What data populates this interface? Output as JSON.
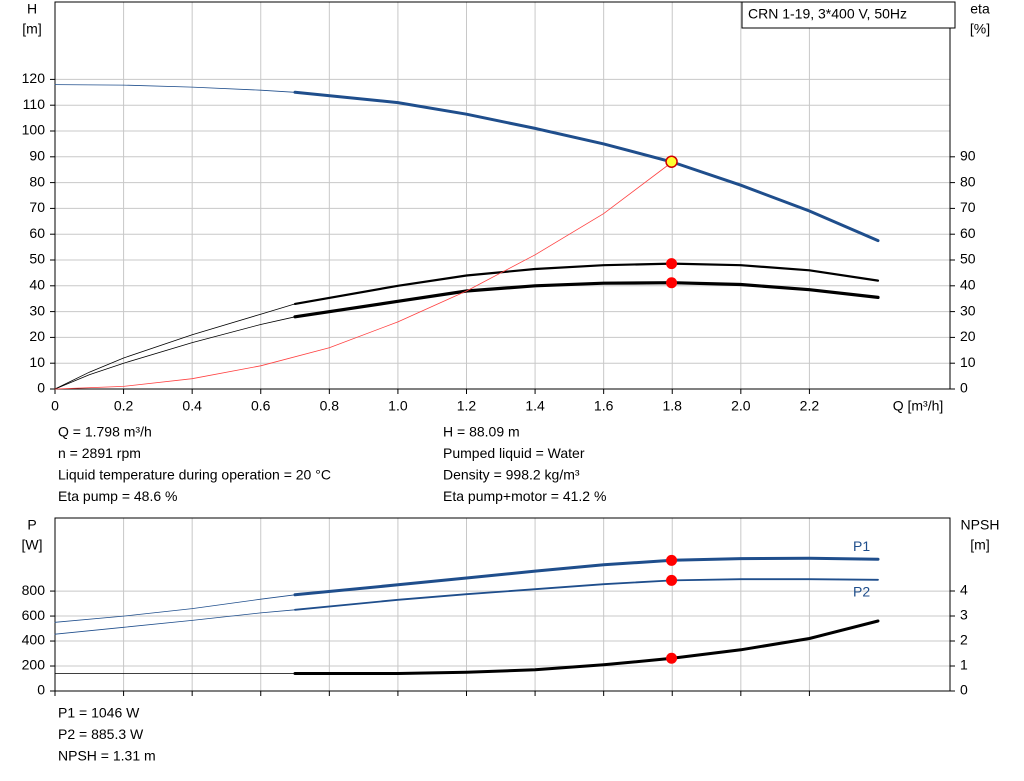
{
  "chart_data": [
    {
      "type": "line",
      "model": "CRN 1-19, 3*400 V, 50Hz",
      "y_label": [
        "H",
        "[m]"
      ],
      "y2_label": [
        "eta",
        "[%]"
      ],
      "x_label": "Q [m³/h]",
      "xlim": [
        0,
        2.61
      ],
      "xticks": [
        0,
        0.2,
        0.4,
        0.6,
        0.8,
        {
          "value": 1,
          "label": "1.0"
        },
        1.2,
        1.4,
        1.6,
        1.8,
        {
          "value": 2,
          "label": "2.0"
        },
        2.2
      ],
      "ylim": [
        0,
        150
      ],
      "yticks": [
        0,
        10,
        20,
        30,
        40,
        50,
        60,
        70,
        80,
        90,
        100,
        110,
        120
      ],
      "y2lim": [
        0,
        150
      ],
      "y2ticks": [
        0,
        10,
        20,
        30,
        40,
        50,
        60,
        70,
        80,
        90
      ],
      "grid": true,
      "lines": [
        {
          "color": "#1f4e8c",
          "width": 0.8,
          "axis": "y",
          "x": [
            0,
            0.2,
            0.4,
            0.6,
            0.7
          ],
          "values": [
            118,
            117.8,
            117,
            115.8,
            115
          ]
        },
        {
          "color": "#1f4e8c",
          "width": 3,
          "axis": "y",
          "x": [
            0.7,
            1.0,
            1.2,
            1.4,
            1.6,
            1.8,
            2.0,
            2.2,
            2.4
          ],
          "values": [
            115,
            111,
            106.5,
            101,
            95,
            88,
            79,
            69,
            57.5
          ]
        },
        {
          "color": "#000000",
          "width": 0.8,
          "axis": "y2",
          "x": [
            0,
            0.1,
            0.2,
            0.4,
            0.6,
            0.7
          ],
          "values": [
            0,
            6.5,
            12,
            21,
            29,
            33
          ]
        },
        {
          "color": "#000000",
          "width": 2.2,
          "axis": "y2",
          "x": [
            0.7,
            1.0,
            1.2,
            1.4,
            1.6,
            1.8,
            2.0,
            2.2,
            2.4
          ],
          "values": [
            33,
            40,
            44,
            46.5,
            48,
            48.6,
            48,
            46,
            42
          ]
        },
        {
          "color": "#000000",
          "width": 0.8,
          "axis": "y2",
          "x": [
            0,
            0.1,
            0.2,
            0.4,
            0.6,
            0.7
          ],
          "values": [
            0,
            5.5,
            10,
            18,
            25,
            28
          ]
        },
        {
          "color": "#000000",
          "width": 3.2,
          "axis": "y2",
          "x": [
            0.7,
            1.0,
            1.2,
            1.4,
            1.6,
            1.8,
            2.0,
            2.2,
            2.4
          ],
          "values": [
            28,
            34,
            38,
            40,
            41,
            41.2,
            40.5,
            38.5,
            35.5
          ]
        },
        {
          "color": "#ff4040",
          "width": 0.8,
          "axis": "y",
          "x": [
            0,
            0.2,
            0.4,
            0.6,
            0.8,
            1.0,
            1.2,
            1.4,
            1.6,
            1.8
          ],
          "values": [
            0,
            1,
            4,
            9,
            16,
            26,
            38,
            52,
            68,
            88
          ]
        }
      ],
      "points": [
        {
          "x": 1.798,
          "value": 88.09,
          "axis": "y",
          "color": "#ffff33"
        },
        {
          "x": 1.798,
          "value": 48.6,
          "axis": "y2",
          "color": "#ff0000"
        },
        {
          "x": 1.798,
          "value": 41.2,
          "axis": "y2",
          "color": "#ff0000"
        }
      ],
      "readout": [
        [
          "Q = 1.798 m³/h",
          "n = 2891 rpm",
          "Liquid temperature during operation = 20 °C",
          "Eta pump = 48.6 %"
        ],
        [
          "H = 88.09 m",
          "Pumped liquid = Water",
          "Density = 998.2 kg/m³",
          "Eta pump+motor = 41.2 %"
        ]
      ]
    },
    {
      "type": "line",
      "y_label": [
        "P",
        "[W]"
      ],
      "y2_label": [
        "NPSH",
        "[m]"
      ],
      "xlim": [
        0,
        2.61
      ],
      "xticks": [
        0,
        0.2,
        0.4,
        0.6,
        0.8,
        1,
        1.2,
        1.4,
        1.6,
        1.8,
        2,
        2.2
      ],
      "ylim": [
        0,
        1385
      ],
      "yticks": [
        0,
        200,
        400,
        600,
        800
      ],
      "y2lim": [
        0,
        6.92
      ],
      "y2ticks": [
        0,
        1,
        2,
        3,
        4
      ],
      "grid": true,
      "lines": [
        {
          "color": "#1f4e8c",
          "width": 0.8,
          "axis": "y",
          "x": [
            0,
            0.2,
            0.4,
            0.6,
            0.7
          ],
          "values": [
            550,
            600,
            660,
            735,
            770
          ]
        },
        {
          "color": "#1f4e8c",
          "width": 3,
          "axis": "y",
          "label": "P1",
          "x": [
            0.7,
            1.0,
            1.2,
            1.4,
            1.6,
            1.8,
            2.0,
            2.2,
            2.4
          ],
          "values": [
            770,
            850,
            905,
            960,
            1010,
            1046,
            1060,
            1062,
            1055
          ]
        },
        {
          "color": "#1f4e8c",
          "width": 0.8,
          "axis": "y",
          "x": [
            0,
            0.2,
            0.4,
            0.6,
            0.7
          ],
          "values": [
            455,
            510,
            565,
            625,
            650
          ]
        },
        {
          "color": "#1f4e8c",
          "width": 1.8,
          "axis": "y",
          "label": "P2",
          "x": [
            0.7,
            1.0,
            1.2,
            1.4,
            1.6,
            1.8,
            2.0,
            2.2,
            2.4
          ],
          "values": [
            650,
            730,
            775,
            815,
            855,
            885.3,
            895,
            895,
            890
          ]
        },
        {
          "color": "#000000",
          "width": 0.8,
          "axis": "y2",
          "x": [
            0,
            0.7
          ],
          "values": [
            0.7,
            0.7
          ]
        },
        {
          "color": "#000000",
          "width": 3,
          "axis": "y2",
          "x": [
            0.7,
            1.0,
            1.2,
            1.4,
            1.6,
            1.8,
            2.0,
            2.2,
            2.4
          ],
          "values": [
            0.7,
            0.7,
            0.75,
            0.85,
            1.05,
            1.31,
            1.65,
            2.1,
            2.8
          ]
        }
      ],
      "points": [
        {
          "x": 1.798,
          "value": 1046,
          "axis": "y",
          "color": "#ff0000"
        },
        {
          "x": 1.798,
          "value": 885.3,
          "axis": "y",
          "color": "#ff0000"
        },
        {
          "x": 1.798,
          "value": 1.31,
          "axis": "y2",
          "color": "#ff0000"
        }
      ],
      "readout": [
        [
          "P1 = 1046 W",
          "P2 = 885.3 W",
          "NPSH = 1.31 m"
        ]
      ]
    }
  ]
}
